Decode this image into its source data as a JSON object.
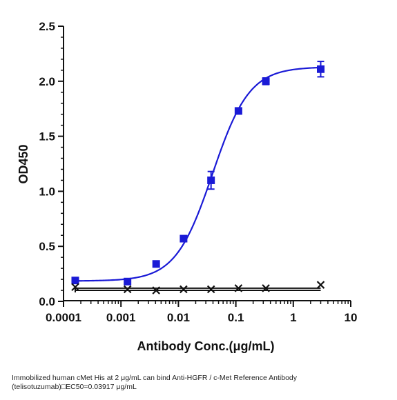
{
  "chart_data": {
    "type": "scatter",
    "xlabel": "Antibody Conc.(μg/mL)",
    "ylabel": "OD450",
    "x_scale": "log",
    "xlim": [
      0.0001,
      10
    ],
    "ylim": [
      0,
      2.5
    ],
    "x_tick_labels": [
      "0.0001",
      "0.001",
      "0.01",
      "0.1",
      "1",
      "10"
    ],
    "x_tick_values": [
      0.0001,
      0.001,
      0.01,
      0.1,
      1,
      10
    ],
    "y_tick_labels": [
      "0.0",
      "0.5",
      "1.0",
      "1.5",
      "2.0",
      "2.5"
    ],
    "y_tick_values": [
      0,
      0.5,
      1.0,
      1.5,
      2.0,
      2.5
    ],
    "grid": false,
    "series": [
      {
        "color": "#1a1ad6",
        "marker": "square",
        "fit": {
          "model": "4PL",
          "bottom": 0.185,
          "top": 2.13,
          "ec50": 0.03917,
          "hill": 1.35,
          "color": "#1a1ad6"
        },
        "points": [
          {
            "x": 0.00016,
            "y": 0.19,
            "err": 0.01
          },
          {
            "x": 0.0013,
            "y": 0.18,
            "err": 0.01
          },
          {
            "x": 0.0041,
            "y": 0.34,
            "err": 0.01
          },
          {
            "x": 0.0123,
            "y": 0.57,
            "err": 0.01
          },
          {
            "x": 0.037,
            "y": 1.1,
            "err": 0.08
          },
          {
            "x": 0.111,
            "y": 1.73,
            "err": 0.02
          },
          {
            "x": 0.333,
            "y": 2.0,
            "err": 0.03
          },
          {
            "x": 3.0,
            "y": 2.11,
            "err": 0.07
          }
        ]
      },
      {
        "color": "#111111",
        "marker": "x",
        "points": [
          {
            "x": 0.00016,
            "y": 0.13
          },
          {
            "x": 0.0013,
            "y": 0.11
          },
          {
            "x": 0.0041,
            "y": 0.1
          },
          {
            "x": 0.0123,
            "y": 0.11
          },
          {
            "x": 0.037,
            "y": 0.11
          },
          {
            "x": 0.111,
            "y": 0.12
          },
          {
            "x": 0.333,
            "y": 0.12
          },
          {
            "x": 3.0,
            "y": 0.15
          }
        ],
        "lines_y": [
          0.1,
          0.12
        ]
      }
    ]
  },
  "caption": {
    "line1": "Immobilized human cMet His at 2  μg/mL can bind  Anti-HGFR / c-Met Reference Antibody",
    "line2": "(telisotuzumab)□EC50=0.03917 μg/mL"
  }
}
